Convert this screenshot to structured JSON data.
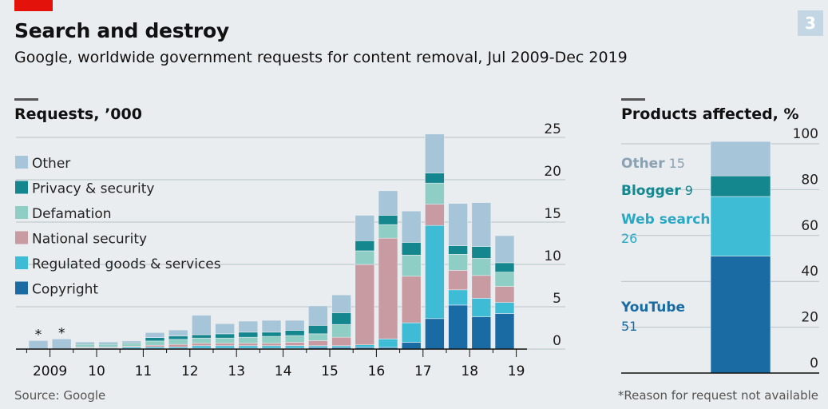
{
  "header": {
    "title": "Search and destroy",
    "subtitle": "Google, worldwide government requests for content removal, Jul 2009-Dec 2019",
    "page_number": "3"
  },
  "source": "Source: Google",
  "footnote": "*Reason for request not available",
  "colors": {
    "Other": "#a7c5d8",
    "Privacy & security": "#14878e",
    "Defamation": "#8fcec5",
    "National security": "#c79ba1",
    "Regulated goods & services": "#3ebcd6",
    "Copyright": "#1a6ba3"
  },
  "chart_data": [
    {
      "type": "bar",
      "stacked": true,
      "title": "Requests, ’000",
      "x_tick_labels": [
        "2009",
        "10",
        "11",
        "12",
        "13",
        "14",
        "15",
        "16",
        "17",
        "18",
        "19"
      ],
      "categories": [
        "2009 H2",
        "2010 H1",
        "2010 H2",
        "2011 H1",
        "2011 H2",
        "2012 H1",
        "2012 H2",
        "2013 H1",
        "2013 H2",
        "2014 H1",
        "2014 H2",
        "2015 H1",
        "2015 H2",
        "2016 H1",
        "2016 H2",
        "2017 H1",
        "2017 H2",
        "2018 H1",
        "2018 H2",
        "2019 H1",
        "2019 H2"
      ],
      "annotations": [
        {
          "category": "2009 H2",
          "text": "*"
        },
        {
          "category": "2010 H1",
          "text": "*"
        }
      ],
      "series": [
        {
          "name": "Copyright",
          "values": [
            0,
            0,
            0.05,
            0.05,
            0.05,
            0.05,
            0.05,
            0.1,
            0.1,
            0.1,
            0.1,
            0.1,
            0.2,
            0.2,
            0.2,
            0.2,
            0.8,
            3.6,
            5.2,
            3.8,
            4.2
          ]
        },
        {
          "name": "Regulated goods & services",
          "values": [
            0,
            0,
            0.1,
            0.1,
            0.2,
            0.2,
            0.2,
            0.3,
            0.3,
            0.3,
            0.3,
            0.3,
            0.2,
            0.2,
            0.3,
            1.0,
            2.3,
            11.0,
            1.8,
            2.2,
            1.3
          ]
        },
        {
          "name": "National security",
          "values": [
            0,
            0,
            0.1,
            0.1,
            0.1,
            0.2,
            0.3,
            0.3,
            0.3,
            0.3,
            0.3,
            0.4,
            0.6,
            1.0,
            9.5,
            11.9,
            5.5,
            2.5,
            2.3,
            2.7,
            1.9
          ]
        },
        {
          "name": "Defamation",
          "values": [
            0,
            0,
            0.3,
            0.3,
            0.3,
            0.5,
            0.6,
            0.6,
            0.6,
            0.7,
            0.8,
            0.8,
            0.8,
            1.5,
            1.6,
            1.6,
            2.5,
            2.5,
            1.9,
            2.0,
            1.7
          ]
        },
        {
          "name": "Privacy & security",
          "values": [
            0,
            0,
            0.1,
            0.1,
            0.1,
            0.4,
            0.4,
            0.4,
            0.5,
            0.6,
            0.5,
            0.6,
            1.0,
            1.4,
            1.2,
            1.1,
            1.5,
            1.2,
            1.0,
            1.4,
            1.1
          ]
        },
        {
          "name": "Other",
          "values": [
            0,
            0,
            0.2,
            0.2,
            0.2,
            0.6,
            0.7,
            2.3,
            1.2,
            1.3,
            1.4,
            1.2,
            2.3,
            2.1,
            3.0,
            2.9,
            3.7,
            4.6,
            5.0,
            5.2,
            3.2
          ]
        },
        {
          "name": "Reason not available",
          "values": [
            1.0,
            1.2,
            0,
            0,
            0,
            0,
            0,
            0,
            0,
            0,
            0,
            0,
            0,
            0,
            0,
            0,
            0,
            0,
            0,
            0,
            0
          ]
        }
      ],
      "ylim": [
        0,
        25
      ],
      "yticks": [
        0,
        5,
        10,
        15,
        20,
        25
      ],
      "ytick_labels": [
        "0",
        "5",
        "10",
        "15",
        "20",
        "25"
      ],
      "y_axis_side": "right",
      "grid": true,
      "legend_position": "top-left",
      "legend_entries": [
        "Other",
        "Privacy & security",
        "Defamation",
        "National security",
        "Regulated goods & services",
        "Copyright"
      ]
    },
    {
      "type": "bar",
      "stacked": true,
      "title": "Products affected, %",
      "segments": [
        {
          "name": "YouTube",
          "value": 51,
          "label": "YouTube",
          "value_label": "51",
          "color": "#1a6ba3",
          "label_color": "#1a6ba3"
        },
        {
          "name": "Web search",
          "value": 26,
          "label": "Web search",
          "value_label": "26",
          "color": "#3ebcd6",
          "label_color": "#29a8c3"
        },
        {
          "name": "Blogger",
          "value": 9,
          "label": "Blogger",
          "value_label": "9",
          "color": "#14878e",
          "label_color": "#14878e"
        },
        {
          "name": "Other",
          "value": 15,
          "label": "Other",
          "value_label": "15",
          "color": "#a7c5d8",
          "label_color": "#8aa1b1"
        }
      ],
      "ylim": [
        0,
        100
      ],
      "yticks": [
        0,
        20,
        40,
        60,
        80,
        100
      ],
      "ytick_labels": [
        "0",
        "20",
        "40",
        "60",
        "80",
        "100"
      ],
      "y_axis_side": "right",
      "grid": true
    }
  ]
}
